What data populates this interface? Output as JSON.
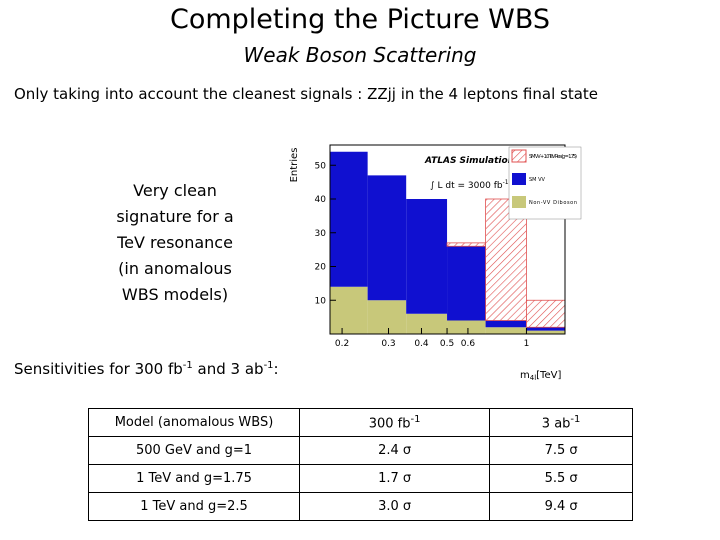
{
  "header": {
    "title": "Completing the Picture WBS",
    "subtitle": "Weak Boson Scattering"
  },
  "intro": "Only taking into account the cleanest signals : ZZjj in the 4 leptons final state",
  "side_text": [
    "Very clean",
    "signature for a",
    "TeV resonance",
    "(in anomalous",
    "WBS models)"
  ],
  "chart_data": {
    "type": "histogram",
    "stacked": true,
    "ylabel": "Entries",
    "xlabel": "m",
    "xlabel_sub": "4l",
    "xlabel_unit": "[TeV]",
    "annotations": [
      "ATLAS Simulation",
      "∫ L dt = 3000 fb",
      "-1"
    ],
    "bins": [
      0.18,
      0.25,
      0.35,
      0.5,
      0.7,
      1.0,
      1.4
    ],
    "series": [
      {
        "name": "Non-VV Diboson",
        "color": "#c8c87a",
        "values": [
          14,
          10,
          6,
          4,
          2,
          1
        ]
      },
      {
        "name": "SM VV",
        "color": "#1010d0",
        "values": [
          40,
          37,
          34,
          22,
          2,
          1
        ]
      },
      {
        "name": "SM VV + 1.0 TeV Res (g = 1.75)",
        "color": "#e05050",
        "hatch": true,
        "values": [
          0,
          0,
          0,
          1,
          36,
          8
        ]
      }
    ],
    "xlim": [
      0.18,
      1.4
    ],
    "xlog": true,
    "xticks": [
      0.2,
      0.3,
      0.4,
      0.5,
      0.6,
      1
    ],
    "ylim": [
      0,
      56
    ],
    "yticks": [
      10,
      20,
      30,
      40,
      50
    ]
  },
  "sensitivities": [
    "Sensitivities for 300 fb",
    "-1",
    " and 3 ab",
    "-1",
    ":"
  ],
  "table": {
    "header": [
      "Model (anomalous WBS)",
      {
        "text": "300 fb",
        "sup": "-1"
      },
      {
        "text": "3 ab",
        "sup": "-1"
      }
    ],
    "rows": [
      [
        "500 GeV and g=1",
        "2.4 σ",
        "7.5 σ"
      ],
      [
        "1 TeV and g=1.75",
        "1.7 σ",
        "5.5 σ"
      ],
      [
        "1 TeV and g=2.5",
        "3.0 σ",
        "9.4 σ"
      ]
    ]
  }
}
